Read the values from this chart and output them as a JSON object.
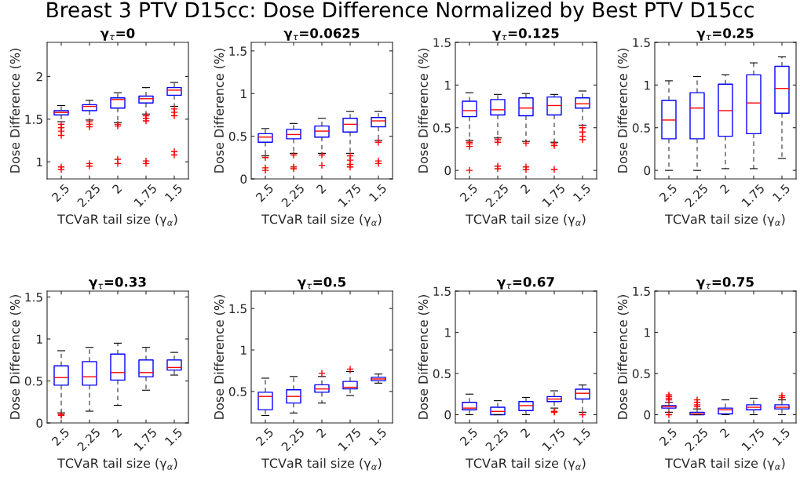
{
  "chart_data": [
    {
      "type": "box",
      "title": "γ$_{τ}$=0",
      "xlabel": "TCVaR tail size (γ$_{α}$)",
      "ylabel": "Dose Difference (%)",
      "annotations": [
        "Breast 3 PTV D15cc: Dose Difference Normalized by Best PTV D15cc"
      ],
      "categories": [
        "2.5",
        "2.25",
        "2",
        "1.75",
        "1.5"
      ],
      "ylim": [
        0.8,
        2.4
      ],
      "yticks": [
        1,
        1.5,
        2
      ],
      "series": [
        {
          "color": "#0000ff",
          "boxes": [
            {
              "low": 1.47,
              "q1": 1.55,
              "median": 1.58,
              "q3": 1.6,
              "high": 1.66,
              "outliers": [
                1.44,
                1.4,
                1.36,
                1.31,
                0.94,
                0.91
              ]
            },
            {
              "low": 1.49,
              "q1": 1.6,
              "median": 1.65,
              "q3": 1.67,
              "high": 1.72,
              "outliers": [
                1.47,
                1.44,
                1.41,
                0.98,
                0.95
              ]
            },
            {
              "low": 1.46,
              "q1": 1.63,
              "median": 1.73,
              "q3": 1.75,
              "high": 1.81,
              "outliers": [
                1.44,
                1.42,
                1.03,
                0.98
              ]
            },
            {
              "low": 1.56,
              "q1": 1.69,
              "median": 1.74,
              "q3": 1.77,
              "high": 1.87,
              "outliers": [
                1.54,
                1.51,
                1.48,
                1.01,
                0.98
              ]
            },
            {
              "low": 1.65,
              "q1": 1.78,
              "median": 1.84,
              "q3": 1.87,
              "high": 1.93,
              "outliers": [
                1.62,
                1.58,
                1.54,
                1.12,
                1.08
              ]
            }
          ]
        }
      ]
    },
    {
      "type": "box",
      "title": "γ$_{τ}$=0.0625",
      "xlabel": "TCVaR tail size (γ$_{α}$)",
      "ylabel": "Dose Difference (%)",
      "categories": [
        "2.5",
        "2.25",
        "2",
        "1.75",
        "1.5"
      ],
      "ylim": [
        0,
        1.6
      ],
      "yticks": [
        0,
        0.5,
        1,
        1.5
      ],
      "series": [
        {
          "color": "#0000ff",
          "boxes": [
            {
              "low": 0.27,
              "q1": 0.43,
              "median": 0.49,
              "q3": 0.53,
              "high": 0.59,
              "outliers": [
                0.25,
                0.13,
                0.1
              ]
            },
            {
              "low": 0.3,
              "q1": 0.47,
              "median": 0.52,
              "q3": 0.58,
              "high": 0.65,
              "outliers": [
                0.28,
                0.14,
                0.12
              ]
            },
            {
              "low": 0.3,
              "q1": 0.49,
              "median": 0.56,
              "q3": 0.62,
              "high": 0.71,
              "outliers": [
                0.28,
                0.16
              ]
            },
            {
              "low": 0.3,
              "q1": 0.55,
              "median": 0.64,
              "q3": 0.71,
              "high": 0.79,
              "outliers": [
                0.27,
                0.22,
                0.17,
                0.14
              ]
            },
            {
              "low": 0.45,
              "q1": 0.61,
              "median": 0.68,
              "q3": 0.72,
              "high": 0.79,
              "outliers": [
                0.43,
                0.21,
                0.18
              ]
            }
          ]
        }
      ]
    },
    {
      "type": "box",
      "title": "γ$_{τ}$=0.125",
      "xlabel": "TCVaR tail size (γ$_{α}$)",
      "ylabel": "Dose Difference (%)",
      "categories": [
        "2.5",
        "2.25",
        "2",
        "1.75",
        "1.5"
      ],
      "ylim": [
        -0.1,
        1.5
      ],
      "yticks": [
        0,
        0.5,
        1,
        1.5
      ],
      "series": [
        {
          "color": "#0000ff",
          "boxes": [
            {
              "low": 0.35,
              "q1": 0.63,
              "median": 0.7,
              "q3": 0.81,
              "high": 0.91,
              "outliers": [
                0.33,
                0.31,
                0.28,
                0.0
              ]
            },
            {
              "low": 0.38,
              "q1": 0.65,
              "median": 0.71,
              "q3": 0.83,
              "high": 0.89,
              "outliers": [
                0.36,
                0.33,
                0.05,
                0.02
              ]
            },
            {
              "low": 0.34,
              "q1": 0.64,
              "median": 0.73,
              "q3": 0.85,
              "high": 0.9,
              "outliers": [
                0.32,
                0.04,
                0.01
              ]
            },
            {
              "low": 0.33,
              "q1": 0.65,
              "median": 0.76,
              "q3": 0.86,
              "high": 0.89,
              "outliers": [
                0.31,
                0.29,
                0.01
              ]
            },
            {
              "low": 0.53,
              "q1": 0.73,
              "median": 0.78,
              "q3": 0.85,
              "high": 0.93,
              "outliers": [
                0.5,
                0.45,
                0.4,
                0.36
              ]
            }
          ]
        }
      ]
    },
    {
      "type": "box",
      "title": "γ$_{τ}$=0.25",
      "xlabel": "TCVaR tail size (γ$_{α}$)",
      "ylabel": "Dose Difference (%)",
      "categories": [
        "2.5",
        "2.25",
        "2",
        "1.75",
        "1.5"
      ],
      "ylim": [
        -0.1,
        1.5
      ],
      "yticks": [
        0,
        0.5,
        1,
        1.5
      ],
      "series": [
        {
          "color": "#0000ff",
          "boxes": [
            {
              "low": 0.0,
              "q1": 0.37,
              "median": 0.59,
              "q3": 0.82,
              "high": 1.05
            },
            {
              "low": 0.0,
              "q1": 0.37,
              "median": 0.73,
              "q3": 0.91,
              "high": 1.1
            },
            {
              "low": 0.02,
              "q1": 0.4,
              "median": 0.7,
              "q3": 1.01,
              "high": 1.12
            },
            {
              "low": 0.02,
              "q1": 0.43,
              "median": 0.79,
              "q3": 1.12,
              "high": 1.26
            },
            {
              "low": 0.14,
              "q1": 0.67,
              "median": 0.96,
              "q3": 1.22,
              "high": 1.33
            }
          ]
        }
      ]
    },
    {
      "type": "box",
      "title": "γ$_{τ}$=0.33",
      "xlabel": "TCVaR tail size (γ$_{α}$)",
      "ylabel": "Dose Difference (%)",
      "categories": [
        "2.5",
        "2.25",
        "2",
        "1.75",
        "1.5"
      ],
      "ylim": [
        0,
        1.57
      ],
      "yticks": [
        0,
        0.5,
        1,
        1.5
      ],
      "series": [
        {
          "color": "#0000ff",
          "boxes": [
            {
              "low": 0.12,
              "q1": 0.45,
              "median": 0.54,
              "q3": 0.68,
              "high": 0.86,
              "outliers": [
                0.1,
                0.09
              ]
            },
            {
              "low": 0.14,
              "q1": 0.45,
              "median": 0.55,
              "q3": 0.73,
              "high": 0.9
            },
            {
              "low": 0.21,
              "q1": 0.51,
              "median": 0.6,
              "q3": 0.82,
              "high": 0.95
            },
            {
              "low": 0.39,
              "q1": 0.55,
              "median": 0.6,
              "q3": 0.75,
              "high": 0.9
            },
            {
              "low": 0.57,
              "q1": 0.63,
              "median": 0.66,
              "q3": 0.75,
              "high": 0.84
            }
          ]
        }
      ]
    },
    {
      "type": "box",
      "title": "γ$_{τ}$=0.5",
      "xlabel": "TCVaR tail size (γ$_{α}$)",
      "ylabel": "Dose Difference (%)",
      "categories": [
        "2.5",
        "2.25",
        "2",
        "1.75",
        "1.5"
      ],
      "ylim": [
        0.12,
        1.71
      ],
      "yticks": [
        0.5,
        1,
        1.5
      ],
      "series": [
        {
          "color": "#0000ff",
          "boxes": [
            {
              "low": 0.21,
              "q1": 0.28,
              "median": 0.44,
              "q3": 0.49,
              "high": 0.66
            },
            {
              "low": 0.24,
              "q1": 0.36,
              "median": 0.44,
              "q3": 0.52,
              "high": 0.68
            },
            {
              "low": 0.36,
              "q1": 0.49,
              "median": 0.53,
              "q3": 0.58,
              "high": 0.68,
              "outliers": [
                0.72
              ]
            },
            {
              "low": 0.45,
              "q1": 0.53,
              "median": 0.55,
              "q3": 0.62,
              "high": 0.74,
              "outliers": [
                0.77
              ]
            },
            {
              "low": 0.6,
              "q1": 0.63,
              "median": 0.65,
              "q3": 0.67,
              "high": 0.71
            }
          ]
        }
      ]
    },
    {
      "type": "box",
      "title": "γ$_{τ}$=0.67",
      "xlabel": "TCVaR tail size (γ$_{α}$)",
      "ylabel": "Dose Difference (%)",
      "categories": [
        "2.5",
        "2.25",
        "2",
        "1.75",
        "1.5"
      ],
      "ylim": [
        -0.1,
        1.5
      ],
      "yticks": [
        0,
        0.5,
        1,
        1.5
      ],
      "series": [
        {
          "color": "#0000ff",
          "boxes": [
            {
              "low": 0.0,
              "q1": 0.06,
              "median": 0.08,
              "q3": 0.15,
              "high": 0.25
            },
            {
              "low": 0.0,
              "q1": 0.0,
              "median": 0.04,
              "q3": 0.09,
              "high": 0.17
            },
            {
              "low": 0.0,
              "q1": 0.05,
              "median": 0.11,
              "q3": 0.16,
              "high": 0.21
            },
            {
              "low": 0.08,
              "q1": 0.16,
              "median": 0.19,
              "q3": 0.22,
              "high": 0.29,
              "outliers": [
                0.04,
                0.03
              ]
            },
            {
              "low": 0.03,
              "q1": 0.19,
              "median": 0.26,
              "q3": 0.31,
              "high": 0.36,
              "outliers": [
                0.0
              ]
            }
          ]
        }
      ]
    },
    {
      "type": "box",
      "title": "γ$_{τ}$=0.75",
      "xlabel": "TCVaR tail size (γ$_{α}$)",
      "ylabel": "Dose Difference (%)",
      "categories": [
        "2.5",
        "2.25",
        "2",
        "1.75",
        "1.5"
      ],
      "ylim": [
        -0.1,
        1.5
      ],
      "yticks": [
        0,
        0.5,
        1,
        1.5
      ],
      "series": [
        {
          "color": "#0000ff",
          "boxes": [
            {
              "low": 0.03,
              "q1": 0.08,
              "median": 0.1,
              "q3": 0.11,
              "high": 0.15,
              "outliers": [
                0.18,
                0.2,
                0.22,
                0.24,
                0.0
              ]
            },
            {
              "low": 0.0,
              "q1": 0.0,
              "median": 0.01,
              "q3": 0.03,
              "high": 0.07,
              "outliers": [
                0.1,
                0.12,
                0.15,
                0.18
              ]
            },
            {
              "low": 0.0,
              "q1": 0.01,
              "median": 0.06,
              "q3": 0.08,
              "high": 0.18
            },
            {
              "low": 0.0,
              "q1": 0.06,
              "median": 0.09,
              "q3": 0.12,
              "high": 0.2
            },
            {
              "low": 0.0,
              "q1": 0.07,
              "median": 0.09,
              "q3": 0.12,
              "high": 0.18,
              "outliers": [
                0.21,
                0.23
              ]
            }
          ]
        }
      ]
    }
  ]
}
